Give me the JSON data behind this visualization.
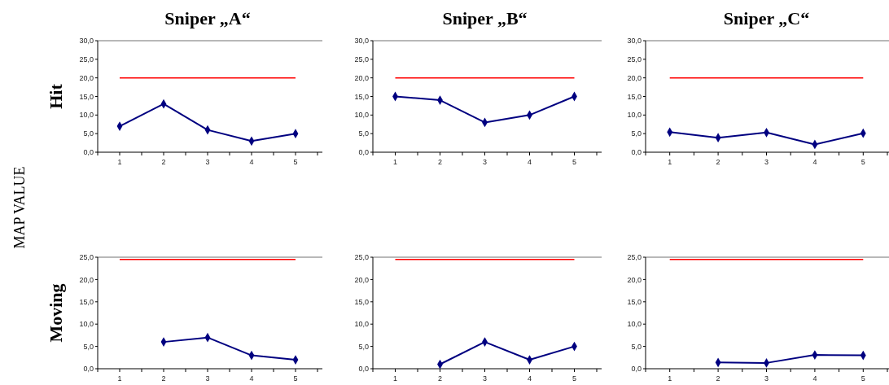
{
  "chart_data": [
    {
      "type": "line",
      "title": "Sniper „A“",
      "ylabel": "Hit",
      "annotations": [
        "MAP VALUE"
      ],
      "categories": [
        "1",
        "2",
        "3",
        "4",
        "5"
      ],
      "marker": "diamond",
      "ylim": [
        0,
        30
      ],
      "yticks": [
        {
          "value": 0,
          "label": "0,0"
        },
        {
          "value": 5,
          "label": "5,0"
        },
        {
          "value": 10,
          "label": "10,0"
        },
        {
          "value": 15,
          "label": "15,0"
        },
        {
          "value": 20,
          "label": "20,0"
        },
        {
          "value": 25,
          "label": "25,0"
        },
        {
          "value": 30,
          "label": "30,0"
        }
      ],
      "series": [
        {
          "color": "#000080",
          "values": [
            7,
            13,
            6,
            3,
            5
          ]
        }
      ],
      "ref_lines": [
        {
          "axis": "y",
          "value": 20,
          "color": "#ff0000"
        }
      ]
    },
    {
      "type": "line",
      "title": "Sniper „B“",
      "categories": [
        "1",
        "2",
        "3",
        "4",
        "5"
      ],
      "marker": "diamond",
      "ylim": [
        0,
        30
      ],
      "yticks": [
        {
          "value": 0,
          "label": "0,0"
        },
        {
          "value": 5,
          "label": "5,0"
        },
        {
          "value": 10,
          "label": "10,0"
        },
        {
          "value": 15,
          "label": "15,0"
        },
        {
          "value": 20,
          "label": "20,0"
        },
        {
          "value": 25,
          "label": "25,0"
        },
        {
          "value": 30,
          "label": "30,0"
        }
      ],
      "series": [
        {
          "color": "#000080",
          "values": [
            15,
            14,
            8,
            10,
            15
          ]
        }
      ],
      "ref_lines": [
        {
          "axis": "y",
          "value": 20,
          "color": "#ff0000"
        }
      ]
    },
    {
      "type": "line",
      "title": "Sniper „C“",
      "categories": [
        "1",
        "2",
        "3",
        "4",
        "5"
      ],
      "marker": "diamond",
      "ylim": [
        0,
        30
      ],
      "yticks": [
        {
          "value": 0,
          "label": "0,0"
        },
        {
          "value": 5,
          "label": "5,0"
        },
        {
          "value": 10,
          "label": "10,0"
        },
        {
          "value": 15,
          "label": "15,0"
        },
        {
          "value": 20,
          "label": "20,0"
        },
        {
          "value": 25,
          "label": "25,0"
        },
        {
          "value": 30,
          "label": "30,0"
        }
      ],
      "series": [
        {
          "color": "#000080",
          "values": [
            5.4,
            3.9,
            5.3,
            2.1,
            5.1
          ]
        }
      ],
      "ref_lines": [
        {
          "axis": "y",
          "value": 20,
          "color": "#ff0000"
        }
      ]
    },
    {
      "type": "line",
      "ylabel": "Moving",
      "categories": [
        "1",
        "2",
        "3",
        "4",
        "5"
      ],
      "marker": "diamond",
      "ylim": [
        0,
        25
      ],
      "yticks": [
        {
          "value": 0,
          "label": "0,0"
        },
        {
          "value": 5,
          "label": "5,0"
        },
        {
          "value": 10,
          "label": "10,0"
        },
        {
          "value": 15,
          "label": "15,0"
        },
        {
          "value": 20,
          "label": "20,0"
        },
        {
          "value": 25,
          "label": "25,0"
        }
      ],
      "series": [
        {
          "color": "#000080",
          "values": [
            null,
            6,
            7,
            3,
            2
          ]
        }
      ],
      "ref_lines": [
        {
          "axis": "y",
          "value": 24.5,
          "color": "#ff0000"
        }
      ]
    },
    {
      "type": "line",
      "categories": [
        "1",
        "2",
        "3",
        "4",
        "5"
      ],
      "marker": "diamond",
      "ylim": [
        0,
        25
      ],
      "yticks": [
        {
          "value": 0,
          "label": "0,0"
        },
        {
          "value": 5,
          "label": "5,0"
        },
        {
          "value": 10,
          "label": "10,0"
        },
        {
          "value": 15,
          "label": "15,0"
        },
        {
          "value": 20,
          "label": "20,0"
        },
        {
          "value": 25,
          "label": "25,0"
        }
      ],
      "series": [
        {
          "color": "#000080",
          "values": [
            null,
            1,
            6,
            2,
            5
          ]
        }
      ],
      "ref_lines": [
        {
          "axis": "y",
          "value": 24.5,
          "color": "#ff0000"
        }
      ]
    },
    {
      "type": "line",
      "categories": [
        "1",
        "2",
        "3",
        "4",
        "5"
      ],
      "marker": "diamond",
      "ylim": [
        0,
        25
      ],
      "yticks": [
        {
          "value": 0,
          "label": "0,0"
        },
        {
          "value": 5,
          "label": "5,0"
        },
        {
          "value": 10,
          "label": "10,0"
        },
        {
          "value": 15,
          "label": "15,0"
        },
        {
          "value": 20,
          "label": "20,0"
        },
        {
          "value": 25,
          "label": "25,0"
        }
      ],
      "series": [
        {
          "color": "#000080",
          "values": [
            null,
            1.4,
            1.3,
            3.1,
            3.0
          ]
        }
      ],
      "ref_lines": [
        {
          "axis": "y",
          "value": 24.5,
          "color": "#ff0000"
        }
      ]
    }
  ]
}
